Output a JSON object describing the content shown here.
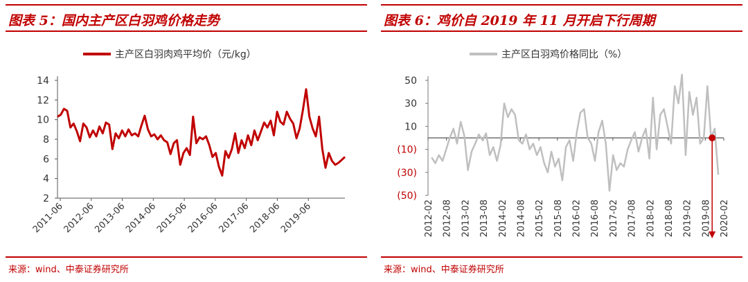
{
  "panels": [
    {
      "title": "图表 5：国内主产区白羽鸡价格走势",
      "source": "来源：wind、中泰证券研究所"
    },
    {
      "title": "图表 6：鸡价自 2019 年 11 月开启下行周期",
      "source": "来源：wind、中泰证券研究所"
    }
  ],
  "chart_data": [
    {
      "type": "line",
      "series": [
        {
          "name": "主产区白羽肉鸡平均价（元/kg）",
          "color": "#c00000",
          "x": [
            2011.4,
            2011.5,
            2011.6,
            2011.7,
            2011.8,
            2011.9,
            2012.0,
            2012.1,
            2012.2,
            2012.3,
            2012.4,
            2012.5,
            2012.6,
            2012.7,
            2012.8,
            2012.9,
            2013.0,
            2013.1,
            2013.2,
            2013.3,
            2013.4,
            2013.5,
            2013.6,
            2013.7,
            2013.8,
            2013.9,
            2014.0,
            2014.1,
            2014.2,
            2014.3,
            2014.4,
            2014.5,
            2014.6,
            2014.7,
            2014.8,
            2014.9,
            2015.0,
            2015.1,
            2015.2,
            2015.3,
            2015.4,
            2015.5,
            2015.6,
            2015.7,
            2015.8,
            2015.9,
            2016.0,
            2016.1,
            2016.2,
            2016.3,
            2016.4,
            2016.5,
            2016.6,
            2016.7,
            2016.8,
            2016.9,
            2017.0,
            2017.1,
            2017.2,
            2017.3,
            2017.4,
            2017.5,
            2017.6,
            2017.7,
            2017.8,
            2017.9,
            2018.0,
            2018.1,
            2018.2,
            2018.3,
            2018.4,
            2018.5,
            2018.6,
            2018.7,
            2018.8,
            2018.9,
            2019.0,
            2019.1,
            2019.2,
            2019.3,
            2019.4,
            2019.5,
            2019.6,
            2019.7,
            2019.8,
            2019.9,
            2020.0,
            2020.1,
            2020.2,
            2020.3
          ],
          "values": [
            10.3,
            10.5,
            11.1,
            10.9,
            9.2,
            9.6,
            8.8,
            7.8,
            9.6,
            9.2,
            8.2,
            8.9,
            8.3,
            9.3,
            8.6,
            9.7,
            9.5,
            7.0,
            8.6,
            8.1,
            8.9,
            8.3,
            9.0,
            8.4,
            8.6,
            8.3,
            9.4,
            10.4,
            9.0,
            8.3,
            8.5,
            8.0,
            8.4,
            7.9,
            7.7,
            6.5,
            7.6,
            7.9,
            5.4,
            6.6,
            7.1,
            6.4,
            10.3,
            7.6,
            8.2,
            8.0,
            8.3,
            7.4,
            6.2,
            6.6,
            5.2,
            4.3,
            6.8,
            6.1,
            7.0,
            8.6,
            6.6,
            7.9,
            7.1,
            8.4,
            7.4,
            8.9,
            7.9,
            8.8,
            9.7,
            9.2,
            9.9,
            8.4,
            10.8,
            9.8,
            9.5,
            10.8,
            10.1,
            9.6,
            8.1,
            9.1,
            11.0,
            13.1,
            10.3,
            9.1,
            8.3,
            10.3,
            7.0,
            5.1,
            6.6,
            5.8,
            5.4,
            5.6,
            5.9,
            6.2
          ]
        }
      ],
      "xticks": [
        "2011-06",
        "2012-06",
        "2013-06",
        "2014-06",
        "2015-06",
        "2016-06",
        "2017-06",
        "2018-06",
        "2019-06"
      ],
      "yticks": [
        "2",
        "4",
        "6",
        "8",
        "10",
        "12",
        "14"
      ],
      "ylim": [
        2,
        14
      ]
    },
    {
      "type": "line",
      "series": [
        {
          "name": "主产区白羽鸡价格同比（%）",
          "color": "#bfbfbf",
          "x": [
            2012.15,
            2012.25,
            2012.35,
            2012.45,
            2012.55,
            2012.65,
            2012.75,
            2012.85,
            2012.95,
            2013.05,
            2013.15,
            2013.25,
            2013.35,
            2013.45,
            2013.55,
            2013.65,
            2013.75,
            2013.85,
            2013.95,
            2014.05,
            2014.15,
            2014.25,
            2014.35,
            2014.45,
            2014.55,
            2014.65,
            2014.75,
            2014.85,
            2014.95,
            2015.05,
            2015.15,
            2015.25,
            2015.35,
            2015.45,
            2015.55,
            2015.65,
            2015.75,
            2015.85,
            2015.95,
            2016.05,
            2016.15,
            2016.25,
            2016.35,
            2016.45,
            2016.55,
            2016.65,
            2016.75,
            2016.85,
            2016.95,
            2017.05,
            2017.15,
            2017.25,
            2017.35,
            2017.45,
            2017.55,
            2017.65,
            2017.75,
            2017.85,
            2017.95,
            2018.05,
            2018.15,
            2018.25,
            2018.35,
            2018.45,
            2018.55,
            2018.65,
            2018.75,
            2018.85,
            2018.95,
            2019.05,
            2019.15,
            2019.25,
            2019.35,
            2019.45,
            2019.55,
            2019.65,
            2019.75,
            2019.85,
            2019.95,
            2020.05
          ],
          "values": [
            -17,
            -22,
            -15,
            -20,
            -10,
            0,
            8,
            -5,
            14,
            2,
            -28,
            -12,
            -5,
            3,
            -2,
            4,
            -15,
            -8,
            -20,
            -6,
            30,
            18,
            25,
            20,
            -2,
            -5,
            3,
            -10,
            -5,
            -15,
            -8,
            -22,
            -30,
            -12,
            -25,
            -18,
            -37,
            -8,
            -2,
            -20,
            5,
            22,
            25,
            0,
            -5,
            -20,
            5,
            15,
            -5,
            -46,
            -15,
            -28,
            -22,
            -25,
            -10,
            -2,
            5,
            -12,
            0,
            8,
            -18,
            35,
            -10,
            20,
            25,
            10,
            -5,
            45,
            30,
            55,
            -15,
            40,
            20,
            35,
            -5,
            0,
            45,
            0,
            8,
            -32
          ],
          "marker": {
            "label": "2019-11",
            "value": 0
          }
        }
      ],
      "xticks": [
        "2012-02",
        "2012-08",
        "2013-02",
        "2013-08",
        "2014-02",
        "2014-08",
        "2015-02",
        "2015-08",
        "2016-02",
        "2016-08",
        "2017-02",
        "2017-08",
        "2018-02",
        "2018-08",
        "2019-02",
        "2019-08",
        "2020-02"
      ],
      "yticks": [
        "50",
        "30",
        "10",
        "(10)",
        "(30)",
        "(50)"
      ],
      "ylim": [
        -50,
        50
      ]
    }
  ]
}
